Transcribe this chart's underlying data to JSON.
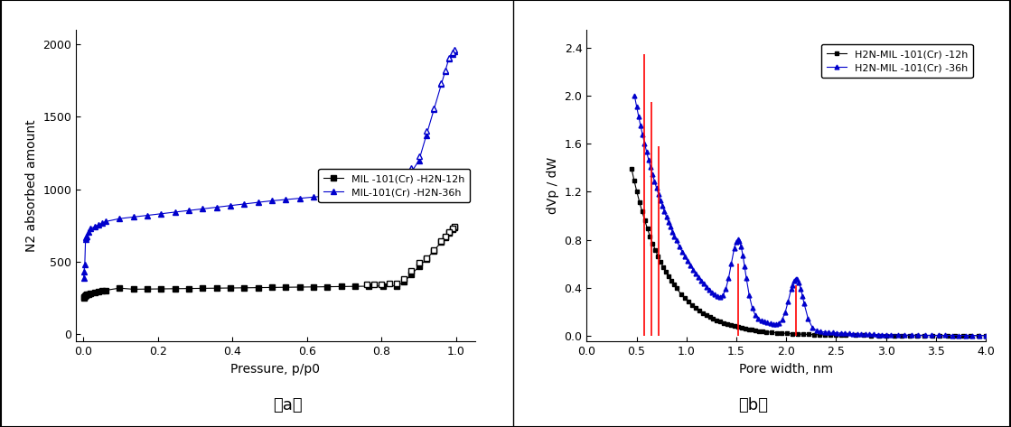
{
  "fig_width": 11.19,
  "fig_height": 4.73,
  "dpi": 100,
  "panel_a": {
    "xlabel": "Pressure, p/p0",
    "ylabel": "N2 absorbed amount",
    "xlim": [
      -0.02,
      1.05
    ],
    "ylim": [
      -50,
      2100
    ],
    "yticks": [
      0,
      500,
      1000,
      1500,
      2000
    ],
    "xticks": [
      0.0,
      0.2,
      0.4,
      0.6,
      0.8,
      1.0
    ],
    "label_a": "（a）",
    "legend_12h": "MIL -101(Cr) -H2N-12h",
    "legend_36h": "MIL-101(Cr) -H2N-36h",
    "color_12h": "#000000",
    "color_36h": "#0000cc"
  },
  "panel_b": {
    "xlabel": "Pore width, nm",
    "ylabel": "dVp / dW",
    "xlim": [
      0.0,
      4.0
    ],
    "ylim": [
      -0.05,
      2.55
    ],
    "yticks": [
      0.0,
      0.4,
      0.8,
      1.2,
      1.6,
      2.0,
      2.4
    ],
    "xticks": [
      0.0,
      0.5,
      1.0,
      1.5,
      2.0,
      2.5,
      3.0,
      3.5,
      4.0
    ],
    "label_b": "（b）",
    "legend_12h": "H2N-MIL -101(Cr) -12h",
    "legend_36h": "H2N-MIL -101(Cr) -36h",
    "color_12h": "#000000",
    "color_36h_line": "#ff0000",
    "color_36h_marker": "#0000cc"
  }
}
